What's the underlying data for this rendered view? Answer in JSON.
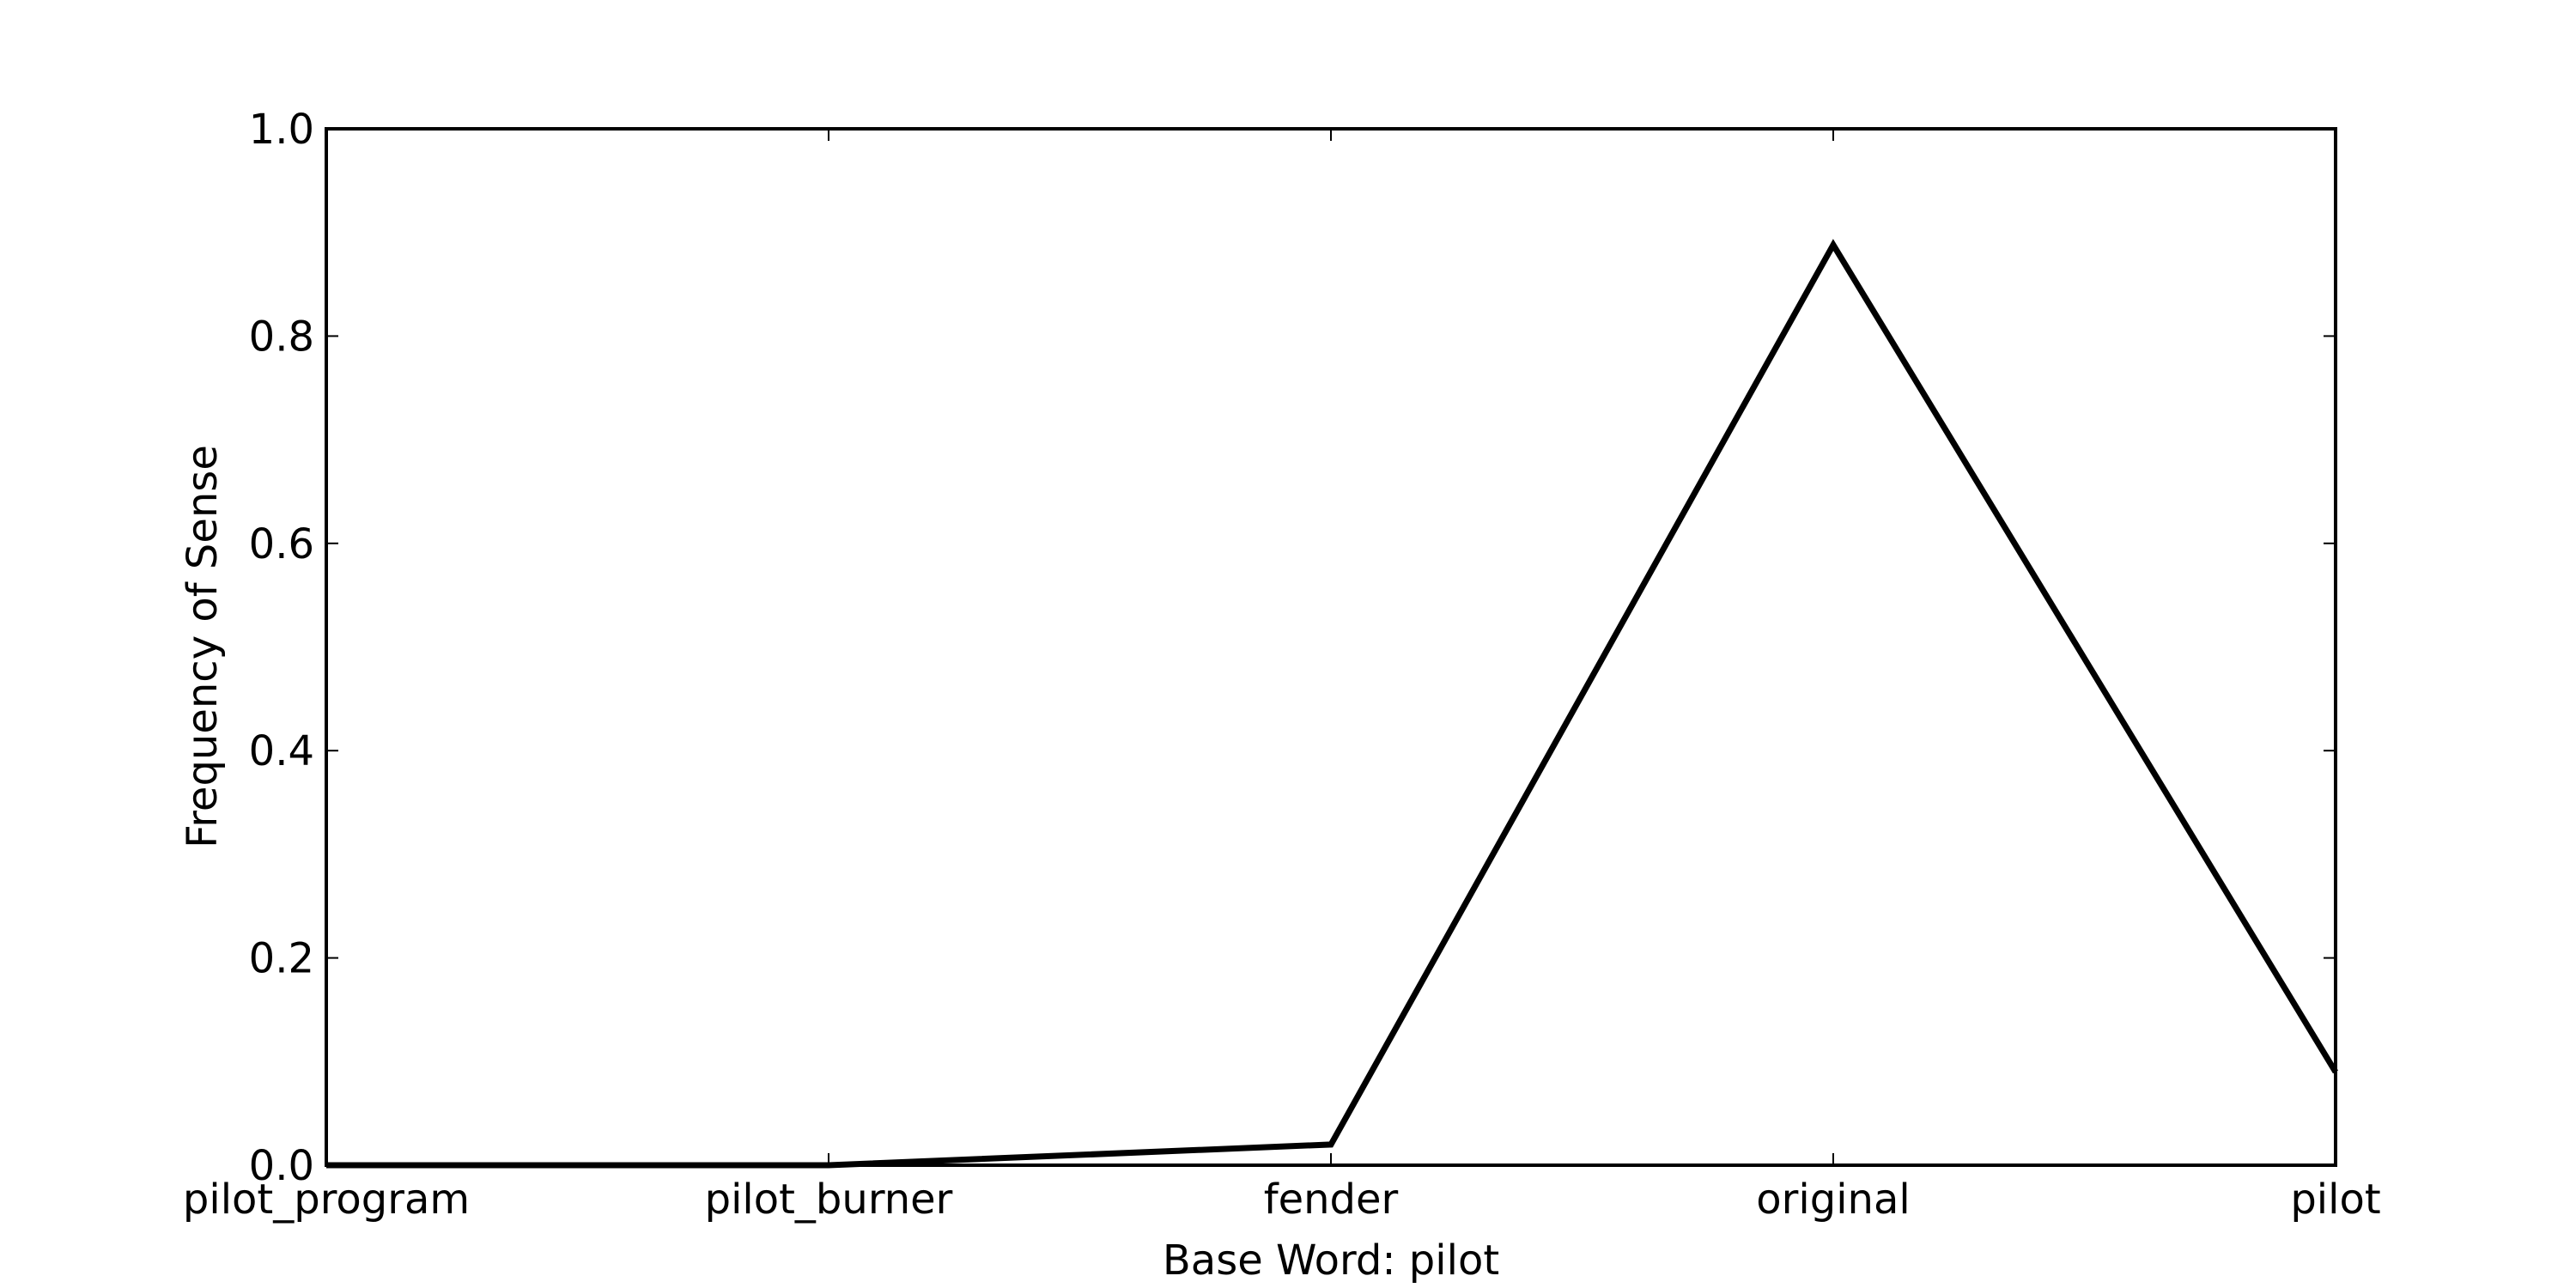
{
  "chart_data": {
    "type": "line",
    "title": "",
    "xlabel": "Base Word: pilot",
    "ylabel": "Frequency of Sense",
    "categories": [
      "pilot_program",
      "pilot_burner",
      "fender",
      "original",
      "pilot"
    ],
    "series": [
      {
        "values": [
          0.0,
          0.0,
          0.02,
          0.888,
          0.09
        ]
      }
    ],
    "ylim": [
      0.0,
      1.0
    ],
    "yticks": [
      0.0,
      0.2,
      0.4,
      0.6,
      0.8,
      1.0
    ],
    "ytick_labels": [
      "0.0",
      "0.2",
      "0.4",
      "0.6",
      "0.8",
      "1.0"
    ],
    "grid": false,
    "line_color": "#000000"
  }
}
